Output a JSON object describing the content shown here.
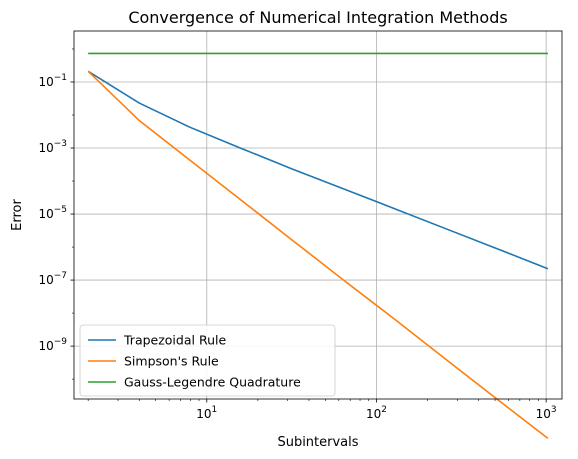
{
  "chart_data": {
    "type": "line",
    "title": "Convergence of Numerical Integration Methods",
    "xlabel": "Subintervals",
    "ylabel": "Error",
    "x_scale": "log",
    "y_scale": "log",
    "xlim": [
      1.65,
      1240
    ],
    "ylim": [
      2.5e-11,
      3.5
    ],
    "grid": true,
    "legend_position": "lower-left",
    "x_ticks": [
      {
        "base": "10",
        "exp": "1",
        "value": 10
      },
      {
        "base": "10",
        "exp": "2",
        "value": 100
      },
      {
        "base": "10",
        "exp": "3",
        "value": 1000
      }
    ],
    "y_ticks": [
      {
        "base": "10",
        "exp": "−9",
        "value": 1e-09
      },
      {
        "base": "10",
        "exp": "−7",
        "value": 1e-07
      },
      {
        "base": "10",
        "exp": "−5",
        "value": 1e-05
      },
      {
        "base": "10",
        "exp": "−3",
        "value": 0.001
      },
      {
        "base": "10",
        "exp": "−1",
        "value": 0.1
      }
    ],
    "x": [
      2,
      4,
      8,
      16,
      32,
      64,
      128,
      256,
      512,
      1024
    ],
    "series": [
      {
        "name": "Trapezoidal Rule",
        "color": "#1f77b4",
        "values": [
          0.21,
          0.023,
          0.0042,
          0.00097,
          0.00023,
          5.8e-05,
          1.45e-05,
          3.6e-06,
          9e-07,
          2.2e-07
        ]
      },
      {
        "name": "Simpson's Rule",
        "color": "#ff7f0e",
        "values": [
          0.21,
          0.0068,
          0.00042,
          2.6e-05,
          1.6e-06,
          1e-07,
          6.5e-09,
          4e-10,
          2.5e-11,
          1.6e-12
        ]
      },
      {
        "name": "Gauss-Legendre Quadrature",
        "color": "#2ca02c",
        "values": [
          0.73,
          0.73,
          0.73,
          0.73,
          0.73,
          0.73,
          0.73,
          0.73,
          0.73,
          0.73
        ]
      }
    ]
  }
}
